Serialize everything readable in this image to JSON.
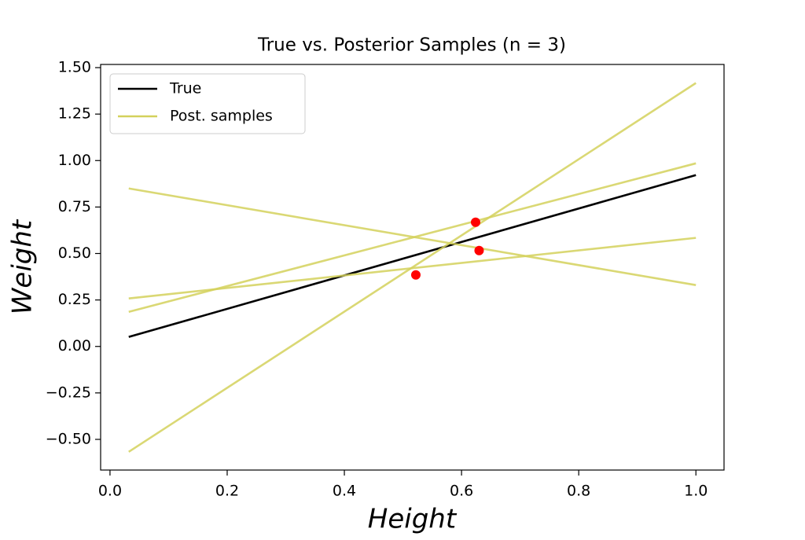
{
  "chart_data": {
    "type": "line",
    "title": "True vs. Posterior Samples (n = 3)",
    "x_label": "Height",
    "y_label": "Weight",
    "xlim": [
      -0.016,
      1.048
    ],
    "ylim": [
      -0.665,
      1.517
    ],
    "xticks": [
      {
        "value": 0,
        "label": "0.0"
      },
      {
        "value": 0.2,
        "label": "0.2"
      },
      {
        "value": 0.4,
        "label": "0.4"
      },
      {
        "value": 0.6,
        "label": "0.6"
      },
      {
        "value": 0.8,
        "label": "0.8"
      },
      {
        "value": 1,
        "label": "1.0"
      }
    ],
    "yticks": [
      {
        "value": -0.5,
        "label": "−0.50"
      },
      {
        "value": -0.25,
        "label": "−0.25"
      },
      {
        "value": 0,
        "label": "0.00"
      },
      {
        "value": 0.25,
        "label": "0.25"
      },
      {
        "value": 0.5,
        "label": "0.50"
      },
      {
        "value": 0.75,
        "label": "0.75"
      },
      {
        "value": 1,
        "label": "1.00"
      },
      {
        "value": 1.25,
        "label": "1.25"
      },
      {
        "value": 1.5,
        "label": "1.50"
      }
    ],
    "legend": "upper left",
    "series": [
      {
        "name": "True",
        "color": "#000000",
        "lines": [
          {
            "x": [
              0.032,
              1.0
            ],
            "values": [
              0.051,
              0.922
            ]
          }
        ]
      },
      {
        "name": "Post. samples",
        "color": "#d4d15c",
        "lines": [
          {
            "x": [
              0.032,
              1.0
            ],
            "values": [
              0.85,
              0.33
            ]
          },
          {
            "x": [
              0.032,
              1.0
            ],
            "values": [
              0.258,
              0.584
            ]
          },
          {
            "x": [
              0.032,
              1.0
            ],
            "values": [
              0.186,
              0.985
            ]
          },
          {
            "x": [
              0.032,
              1.0
            ],
            "values": [
              -0.567,
              1.417
            ]
          }
        ]
      }
    ],
    "points": {
      "color": "#ff0000",
      "x": [
        0.522,
        0.624,
        0.63
      ],
      "values": [
        0.385,
        0.668,
        0.516
      ]
    }
  }
}
